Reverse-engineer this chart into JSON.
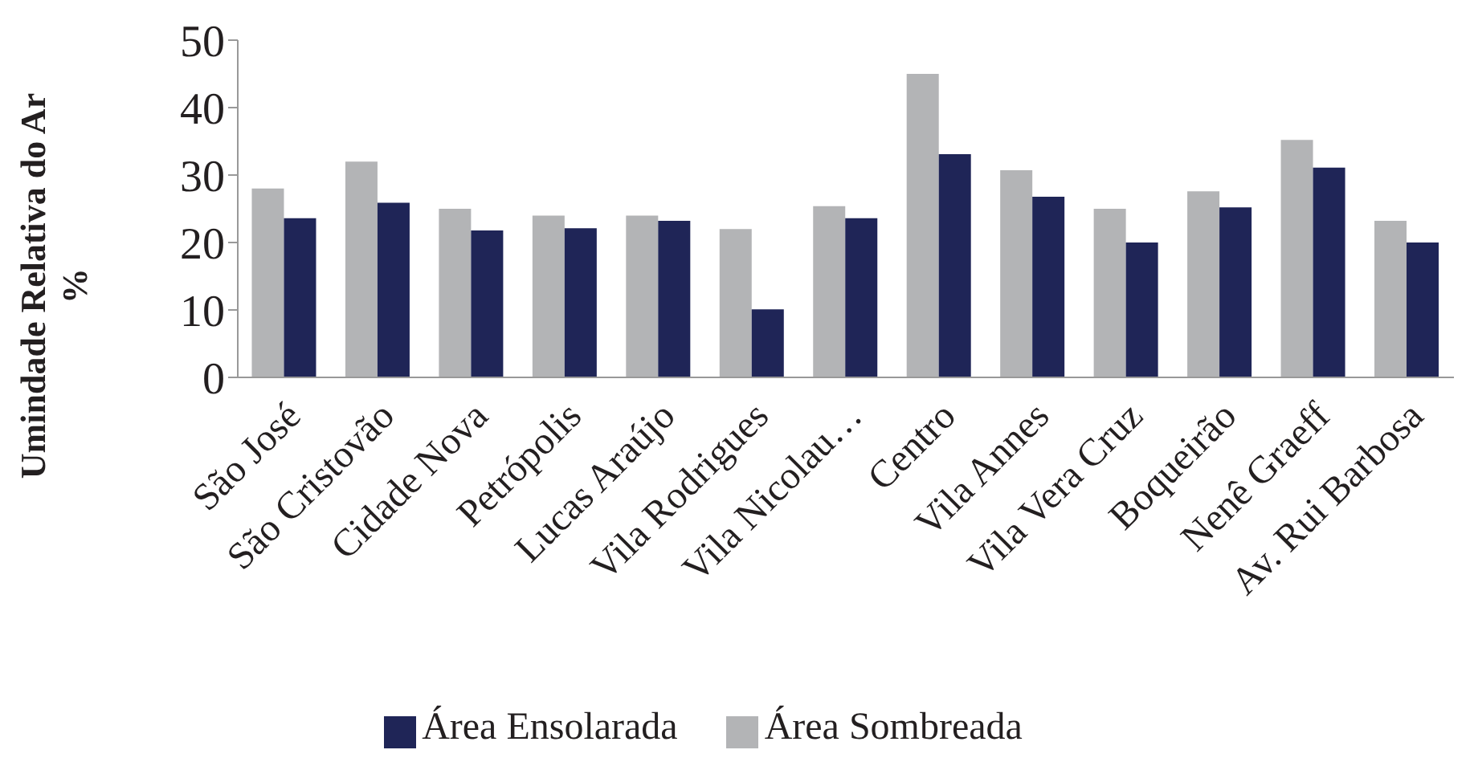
{
  "chart_data": {
    "type": "bar",
    "ylabel": "Umindade Relativa do Ar\n%",
    "categories": [
      "São José",
      "São Cristovão",
      "Cidade Nova",
      "Petrópolis",
      "Lucas Araújo",
      "Vila Rodrigues",
      "Vila Nicolau…",
      "Centro",
      "Vila Annes",
      "Vila Vera Cruz",
      "Boqueirão",
      "Nenê Graeff",
      "Av. Rui Barbosa"
    ],
    "series": [
      {
        "name": "Área Sombreada",
        "color": "#b3b4b6",
        "values": [
          28,
          32,
          25,
          24,
          24,
          22,
          25.4,
          45,
          30.7,
          25,
          27.6,
          35.2,
          23.2
        ]
      },
      {
        "name": "Área Ensolarada",
        "color": "#1f2557",
        "values": [
          23.6,
          25.9,
          21.8,
          22.1,
          23.2,
          10.1,
          23.6,
          33.1,
          26.8,
          20,
          25.2,
          31.1,
          20
        ]
      }
    ],
    "ylim": [
      0,
      50
    ],
    "yticks": [
      0,
      10,
      20,
      30,
      40,
      50
    ],
    "grid": false,
    "legend": "bottom"
  }
}
